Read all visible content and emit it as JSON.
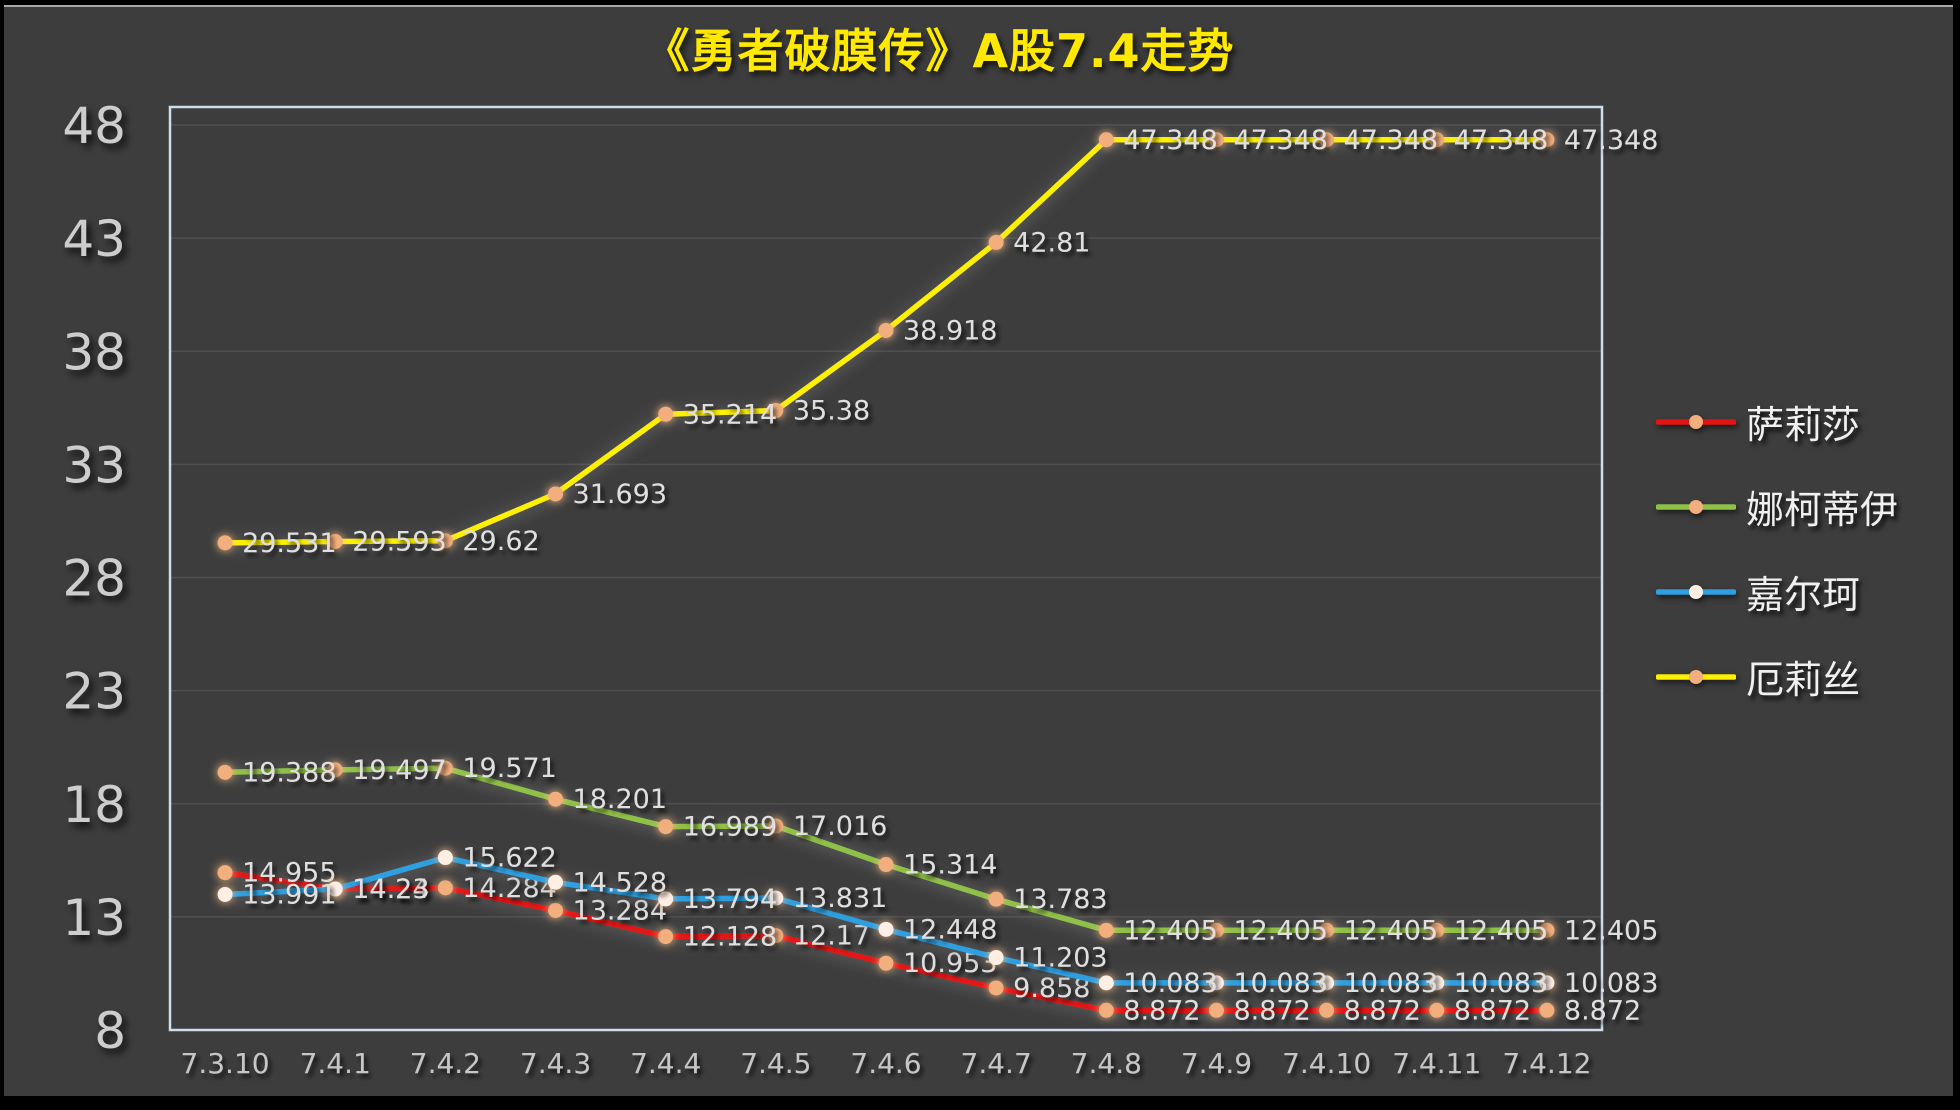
{
  "title": "《勇者破膜传》A股7.4走势",
  "colors": {
    "background": "#3d3d3d",
    "frame": "#000000",
    "title": "#ffe900",
    "plot_border": "#cfdcec",
    "gridline": "rgba(255,255,255,0.10)",
    "axis_label": "#cdcdcd",
    "data_label": "#dfdfdf"
  },
  "chart_data": {
    "type": "line",
    "title": "《勇者破膜传》A股7.4走势",
    "categories": [
      "7.3.10",
      "7.4.1",
      "7.4.2",
      "7.4.3",
      "7.4.4",
      "7.4.5",
      "7.4.6",
      "7.4.7",
      "7.4.8",
      "7.4.9",
      "7.4.10",
      "7.4.11",
      "7.4.12"
    ],
    "y_ticks": [
      8,
      13,
      18,
      23,
      28,
      33,
      38,
      43,
      48
    ],
    "ylim": [
      8,
      48
    ],
    "grid": "horizontal",
    "legend_position": "right",
    "data_labels": true,
    "series": [
      {
        "name": "萨莉莎",
        "color": "#e41414",
        "marker_color": "#f2ae7d",
        "values": [
          14.955,
          14.24,
          14.284,
          13.284,
          12.128,
          12.17,
          10.953,
          9.858,
          8.872,
          8.872,
          8.872,
          8.872,
          8.872
        ]
      },
      {
        "name": "娜柯蒂伊",
        "color": "#8fc047",
        "marker_color": "#f2ae7d",
        "values": [
          19.388,
          19.497,
          19.571,
          18.201,
          16.989,
          17.016,
          15.314,
          13.783,
          12.405,
          12.405,
          12.405,
          12.405,
          12.405
        ]
      },
      {
        "name": "嘉尔珂",
        "color": "#2f9fe0",
        "marker_color": "#ffeee4",
        "values": [
          13.991,
          14.23,
          15.622,
          14.528,
          13.794,
          13.831,
          12.448,
          11.203,
          10.083,
          10.083,
          10.083,
          10.083,
          10.083
        ]
      },
      {
        "name": "厄莉丝",
        "color": "#fdf000",
        "marker_color": "#f2ae7d",
        "values": [
          29.531,
          29.593,
          29.62,
          31.693,
          35.214,
          35.38,
          38.918,
          42.81,
          47.348,
          47.348,
          47.348,
          47.348,
          47.348
        ]
      }
    ]
  }
}
